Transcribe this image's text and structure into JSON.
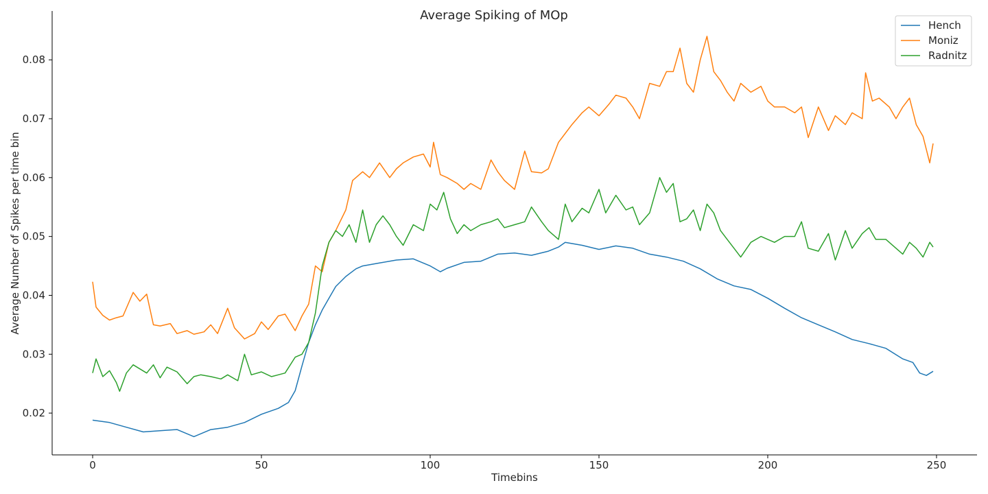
{
  "chart_data": {
    "type": "line",
    "title": "Average Spiking of MOp",
    "xlabel": "Timebins",
    "ylabel": "Average Number of Spikes per time bin",
    "xlim": [
      -12,
      262
    ],
    "ylim": [
      0.0129,
      0.0883
    ],
    "xticks": [
      0,
      50,
      100,
      150,
      200,
      250
    ],
    "yticks": [
      0.02,
      0.03,
      0.04,
      0.05,
      0.06,
      0.07,
      0.08
    ],
    "ytick_labels": [
      "0.02",
      "0.03",
      "0.04",
      "0.05",
      "0.06",
      "0.07",
      "0.08"
    ],
    "grid": false,
    "legend_position": "top-right",
    "series": [
      {
        "name": "Hench",
        "color": "#1f77b4",
        "x": [
          0,
          5,
          10,
          15,
          20,
          25,
          30,
          35,
          40,
          45,
          50,
          55,
          58,
          60,
          62,
          64,
          66,
          68,
          70,
          72,
          75,
          78,
          80,
          85,
          90,
          95,
          100,
          103,
          105,
          110,
          115,
          120,
          125,
          130,
          135,
          138,
          140,
          145,
          150,
          155,
          160,
          165,
          170,
          175,
          180,
          185,
          190,
          195,
          200,
          205,
          210,
          215,
          220,
          225,
          230,
          235,
          240,
          243,
          245,
          247,
          249
        ],
        "y": [
          0.0188,
          0.0184,
          0.0176,
          0.0168,
          0.017,
          0.0172,
          0.016,
          0.0172,
          0.0176,
          0.0184,
          0.0198,
          0.0208,
          0.0218,
          0.0238,
          0.028,
          0.032,
          0.035,
          0.0375,
          0.0395,
          0.0415,
          0.0432,
          0.0445,
          0.045,
          0.0455,
          0.046,
          0.0462,
          0.045,
          0.044,
          0.0446,
          0.0456,
          0.0458,
          0.047,
          0.0472,
          0.0468,
          0.0475,
          0.0482,
          0.049,
          0.0485,
          0.0478,
          0.0484,
          0.048,
          0.047,
          0.0465,
          0.0458,
          0.0445,
          0.0428,
          0.0416,
          0.041,
          0.0395,
          0.0378,
          0.0362,
          0.035,
          0.0338,
          0.0325,
          0.0318,
          0.031,
          0.0292,
          0.0286,
          0.0268,
          0.0264,
          0.0271
        ]
      },
      {
        "name": "Moniz",
        "color": "#ff7f0e",
        "x": [
          0,
          1,
          3,
          5,
          7,
          9,
          12,
          14,
          16,
          18,
          20,
          23,
          25,
          28,
          30,
          33,
          35,
          37,
          40,
          42,
          45,
          48,
          50,
          52,
          55,
          57,
          60,
          62,
          64,
          66,
          68,
          70,
          72,
          75,
          77,
          80,
          82,
          85,
          88,
          90,
          92,
          95,
          98,
          100,
          101,
          103,
          105,
          108,
          110,
          112,
          115,
          118,
          120,
          122,
          125,
          128,
          130,
          133,
          135,
          138,
          140,
          142,
          145,
          147,
          150,
          153,
          155,
          158,
          160,
          162,
          165,
          168,
          170,
          172,
          174,
          176,
          178,
          180,
          182,
          184,
          186,
          188,
          190,
          192,
          195,
          198,
          200,
          202,
          205,
          208,
          210,
          212,
          215,
          218,
          220,
          223,
          225,
          228,
          229,
          231,
          233,
          236,
          238,
          240,
          242,
          244,
          246,
          248,
          249
        ],
        "y": [
          0.0423,
          0.038,
          0.0366,
          0.0358,
          0.0362,
          0.0365,
          0.0405,
          0.039,
          0.0402,
          0.035,
          0.0348,
          0.0352,
          0.0335,
          0.034,
          0.0334,
          0.0338,
          0.035,
          0.0335,
          0.0378,
          0.0345,
          0.0326,
          0.0335,
          0.0355,
          0.0342,
          0.0365,
          0.0368,
          0.034,
          0.0365,
          0.0385,
          0.045,
          0.044,
          0.049,
          0.051,
          0.0545,
          0.0595,
          0.061,
          0.06,
          0.0625,
          0.06,
          0.0615,
          0.0625,
          0.0635,
          0.064,
          0.0618,
          0.066,
          0.0605,
          0.06,
          0.059,
          0.058,
          0.059,
          0.058,
          0.063,
          0.061,
          0.0595,
          0.058,
          0.0645,
          0.061,
          0.0608,
          0.0615,
          0.066,
          0.0675,
          0.069,
          0.071,
          0.072,
          0.0705,
          0.0725,
          0.074,
          0.0735,
          0.072,
          0.07,
          0.076,
          0.0755,
          0.078,
          0.078,
          0.082,
          0.076,
          0.0745,
          0.08,
          0.084,
          0.078,
          0.0765,
          0.0745,
          0.073,
          0.076,
          0.0745,
          0.0755,
          0.073,
          0.072,
          0.072,
          0.071,
          0.072,
          0.0668,
          0.072,
          0.068,
          0.0705,
          0.069,
          0.071,
          0.07,
          0.0778,
          0.073,
          0.0735,
          0.072,
          0.07,
          0.072,
          0.0735,
          0.069,
          0.067,
          0.0625,
          0.0658
        ]
      },
      {
        "name": "Radnitz",
        "color": "#2ca02c",
        "x": [
          0,
          1,
          3,
          5,
          7,
          8,
          10,
          12,
          14,
          16,
          18,
          20,
          22,
          25,
          28,
          30,
          32,
          35,
          38,
          40,
          43,
          45,
          47,
          50,
          53,
          55,
          57,
          60,
          62,
          64,
          66,
          68,
          70,
          72,
          74,
          76,
          78,
          80,
          82,
          84,
          86,
          88,
          90,
          92,
          95,
          98,
          100,
          102,
          104,
          106,
          108,
          110,
          112,
          115,
          118,
          120,
          122,
          125,
          128,
          130,
          133,
          135,
          138,
          140,
          142,
          145,
          147,
          150,
          152,
          155,
          158,
          160,
          162,
          165,
          168,
          170,
          172,
          174,
          176,
          178,
          180,
          182,
          184,
          186,
          188,
          190,
          192,
          195,
          198,
          200,
          202,
          205,
          208,
          210,
          212,
          215,
          218,
          220,
          223,
          225,
          228,
          230,
          232,
          235,
          238,
          240,
          242,
          244,
          246,
          248,
          249
        ],
        "y": [
          0.0268,
          0.0292,
          0.0262,
          0.0272,
          0.0252,
          0.0237,
          0.0268,
          0.0282,
          0.0275,
          0.0268,
          0.0282,
          0.026,
          0.0278,
          0.027,
          0.025,
          0.0262,
          0.0265,
          0.0262,
          0.0258,
          0.0265,
          0.0255,
          0.03,
          0.0265,
          0.027,
          0.0262,
          0.0265,
          0.0268,
          0.0295,
          0.03,
          0.032,
          0.037,
          0.045,
          0.049,
          0.051,
          0.05,
          0.052,
          0.049,
          0.0545,
          0.049,
          0.052,
          0.0535,
          0.052,
          0.05,
          0.0485,
          0.052,
          0.051,
          0.0555,
          0.0545,
          0.0575,
          0.053,
          0.0505,
          0.052,
          0.051,
          0.052,
          0.0525,
          0.053,
          0.0515,
          0.052,
          0.0525,
          0.055,
          0.0525,
          0.051,
          0.0495,
          0.0555,
          0.0525,
          0.0548,
          0.054,
          0.058,
          0.054,
          0.057,
          0.0545,
          0.055,
          0.052,
          0.054,
          0.06,
          0.0575,
          0.059,
          0.0525,
          0.053,
          0.0545,
          0.051,
          0.0555,
          0.054,
          0.051,
          0.0495,
          0.048,
          0.0465,
          0.049,
          0.05,
          0.0495,
          0.049,
          0.05,
          0.05,
          0.0525,
          0.048,
          0.0475,
          0.0505,
          0.046,
          0.051,
          0.048,
          0.0505,
          0.0515,
          0.0495,
          0.0495,
          0.048,
          0.047,
          0.049,
          0.048,
          0.0465,
          0.049,
          0.0482
        ]
      }
    ]
  }
}
